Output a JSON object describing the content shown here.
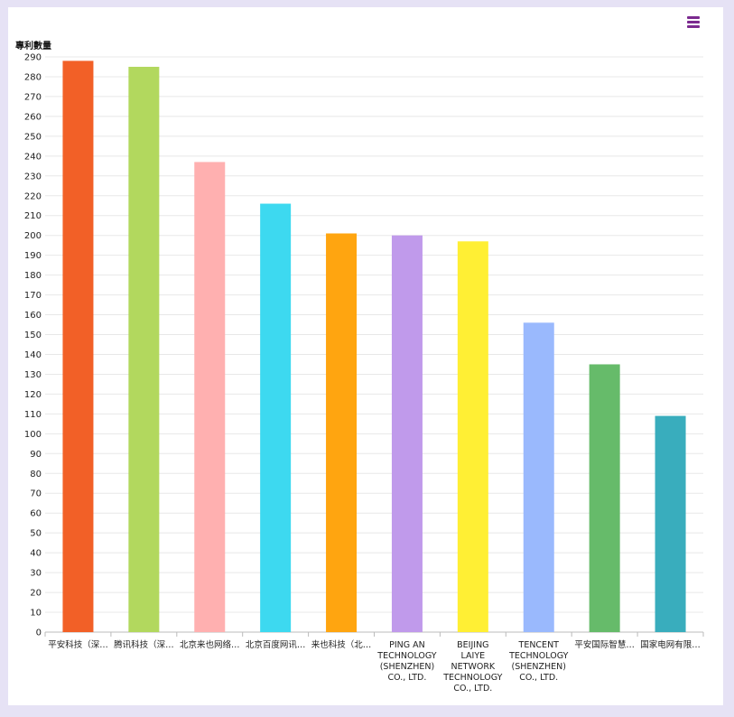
{
  "toolbar": {
    "menu_icon": "hamburger-menu-icon"
  },
  "chart_data": {
    "type": "bar",
    "ylabel": "專利數量",
    "xlabel": "",
    "ylim": [
      0,
      290
    ],
    "ytick_step": 10,
    "grid": true,
    "categories": [
      "平安科技（深…",
      "腾讯科技（深…",
      "北京来也网络…",
      "北京百度网讯…",
      "来也科技（北…",
      "PING AN\nTECHNOLOGY\n(SHENZHEN)\nCO., LTD.",
      "BEIJING\nLAIYE\nNETWORK\nTECHNOLOGY\nCO., LTD.",
      "TENCENT\nTECHNOLOGY\n(SHENZHEN)\nCO., LTD.",
      "平安国际智慧…",
      "国家电网有限…"
    ],
    "values": [
      288,
      285,
      237,
      216,
      201,
      200,
      197,
      156,
      135,
      109
    ],
    "colors": [
      "#f26027",
      "#b2d85e",
      "#ffb0b0",
      "#3dd9f0",
      "#ffa510",
      "#c09aeb",
      "#ffef34",
      "#9ab9fd",
      "#66bb6a",
      "#39adbd"
    ]
  }
}
